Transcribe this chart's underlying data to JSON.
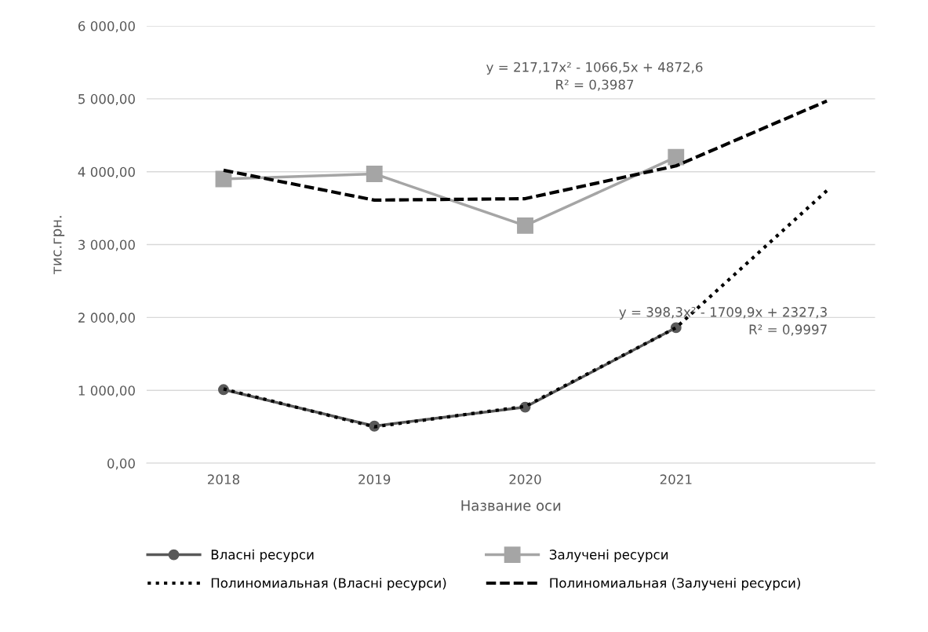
{
  "chart_data": {
    "type": "line",
    "xlabel": "Название оси",
    "ylabel": "тис.грн.",
    "categories": [
      "2018",
      "2019",
      "2020",
      "2021",
      null
    ],
    "series": [
      {
        "name": "Власні ресурси",
        "color": "#595959",
        "marker": "circle",
        "line_style": "solid",
        "values": [
          1010,
          510,
          770,
          1860,
          null
        ]
      },
      {
        "name": "Залучені ресурси",
        "color": "#a5a5a5",
        "marker": "square",
        "line_style": "solid",
        "values": [
          3900,
          3970,
          3260,
          4200,
          null
        ]
      },
      {
        "name": "Полиномиальная (Власні ресурси)",
        "color": "#000000",
        "marker": "none",
        "line_style": "dotted",
        "values": [
          1020,
          500,
          780,
          1860,
          3740
        ]
      },
      {
        "name": "Полиномиальная (Залучені ресурси)",
        "color": "#000000",
        "marker": "none",
        "line_style": "dashed",
        "values": [
          4020,
          3610,
          3630,
          4080,
          4970
        ]
      }
    ],
    "ylim": [
      0,
      6000
    ],
    "yticks": [
      {
        "value": 0,
        "label": "0,00"
      },
      {
        "value": 1000,
        "label": "1 000,00"
      },
      {
        "value": 2000,
        "label": "2 000,00"
      },
      {
        "value": 3000,
        "label": "3 000,00"
      },
      {
        "value": 4000,
        "label": "4 000,00"
      },
      {
        "value": 5000,
        "label": "5 000,00"
      },
      {
        "value": 6000,
        "label": "6 000,00"
      }
    ],
    "grid": "y",
    "legend": "bottom",
    "annotations": [
      "y = 217,17x² - 1066,5x + 4872,6",
      "R² = 0,3987",
      "y = 398,3x² - 1709,9x + 2327,3",
      "R² = 0,9997"
    ]
  }
}
